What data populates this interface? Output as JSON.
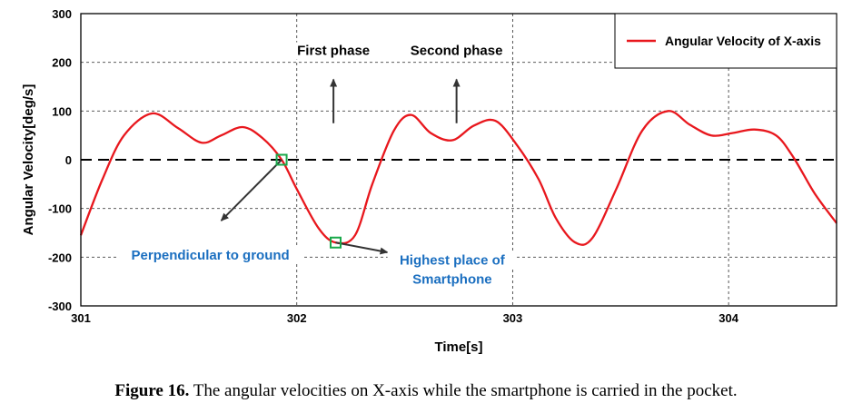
{
  "chart_data": {
    "type": "line",
    "xlabel": "Time[s]",
    "ylabel": "Angular Velocity[deg/s]",
    "xlim": [
      301,
      304.5
    ],
    "ylim": [
      -300,
      300
    ],
    "x_ticks": [
      "301",
      "302",
      "303",
      "304"
    ],
    "y_ticks": [
      "300",
      "200",
      "100",
      "0",
      "-100",
      "-200",
      "-300"
    ],
    "grid": true,
    "legend_position": "top-right",
    "series": [
      {
        "name": "Angular Velocity of X-axis",
        "color": "#e8171d",
        "x": [
          301.0,
          301.1,
          301.2,
          301.33,
          301.45,
          301.56,
          301.65,
          301.75,
          301.84,
          301.93,
          302.0,
          302.1,
          302.18,
          302.27,
          302.35,
          302.45,
          302.53,
          302.62,
          302.72,
          302.82,
          302.92,
          303.02,
          303.12,
          303.2,
          303.29,
          303.37,
          303.48,
          303.6,
          303.72,
          303.82,
          303.92,
          304.02,
          304.12,
          304.22,
          304.3,
          304.4,
          304.5
        ],
        "y": [
          -155,
          -40,
          50,
          95,
          65,
          35,
          50,
          67,
          45,
          0,
          -60,
          -140,
          -170,
          -155,
          -50,
          60,
          92,
          55,
          40,
          70,
          80,
          30,
          -40,
          -120,
          -170,
          -160,
          -60,
          60,
          100,
          72,
          50,
          55,
          62,
          50,
          5,
          -70,
          -130
        ]
      }
    ],
    "reference_line": {
      "y": 0,
      "style": "dashed"
    },
    "annotations": [
      {
        "text": "First phase",
        "x": 302.17,
        "y": 215,
        "arrow_from": [
          302.17,
          75
        ],
        "arrow_to": [
          302.17,
          165
        ]
      },
      {
        "text": "Second phase",
        "x": 302.74,
        "y": 215,
        "arrow_from": [
          302.74,
          75
        ],
        "arrow_to": [
          302.74,
          165
        ]
      },
      {
        "text": "Perpendicular to ground",
        "x": 301.6,
        "y": -205,
        "marker": [
          301.93,
          0
        ],
        "arrow_to": [
          301.65,
          -125
        ]
      },
      {
        "lines": [
          "Highest place of",
          "Smartphone"
        ],
        "x": 302.72,
        "y": -215,
        "marker": [
          302.18,
          -170
        ],
        "arrow_to": [
          302.42,
          -190
        ]
      }
    ]
  },
  "caption": {
    "label": "Figure 16.",
    "text": " The angular velocities on X-axis while the smartphone is carried in the pocket."
  }
}
